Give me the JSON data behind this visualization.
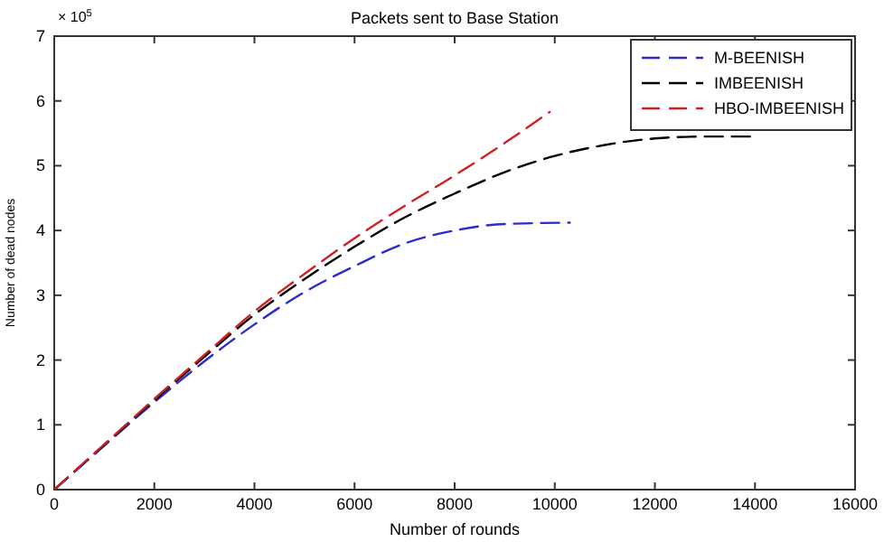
{
  "chart_data": {
    "type": "line",
    "title": "Packets sent to Base Station",
    "xlabel": "Number of rounds",
    "ylabel": "Number of dead nodes",
    "annotations": [
      "× 10$^{5}$"
    ],
    "xlim": [
      0,
      16000
    ],
    "xticks": [
      0,
      2000,
      4000,
      6000,
      8000,
      10000,
      12000,
      14000,
      16000
    ],
    "ylim": [
      0,
      7
    ],
    "yticks": [
      0,
      1,
      2,
      3,
      4,
      5,
      6,
      7
    ],
    "legend": "top right",
    "line_style": "dashed",
    "grid": false,
    "series": [
      {
        "name": "M-BEENISH",
        "color": "#2b2bd0",
        "x": [
          0,
          1000,
          2000,
          3000,
          4000,
          5000,
          6000,
          7000,
          8000,
          9000,
          10300
        ],
        "values": [
          0,
          0.68,
          1.35,
          1.98,
          2.55,
          3.05,
          3.45,
          3.8,
          4.0,
          4.1,
          4.12
        ]
      },
      {
        "name": "IMBEENISH",
        "color": "#000000",
        "x": [
          0,
          1000,
          2000,
          3000,
          4000,
          5000,
          6000,
          7000,
          8000,
          9000,
          10000,
          11000,
          12000,
          13000,
          14000
        ],
        "values": [
          0,
          0.69,
          1.38,
          2.05,
          2.7,
          3.25,
          3.75,
          4.2,
          4.57,
          4.9,
          5.15,
          5.32,
          5.42,
          5.45,
          5.45
        ]
      },
      {
        "name": "HBO-IMBEENISH",
        "color": "#d02020",
        "x": [
          0,
          1000,
          2000,
          3000,
          4000,
          5000,
          6000,
          7000,
          8000,
          9000,
          9900
        ],
        "values": [
          0,
          0.7,
          1.4,
          2.08,
          2.75,
          3.33,
          3.88,
          4.38,
          4.85,
          5.35,
          5.83
        ]
      }
    ]
  }
}
